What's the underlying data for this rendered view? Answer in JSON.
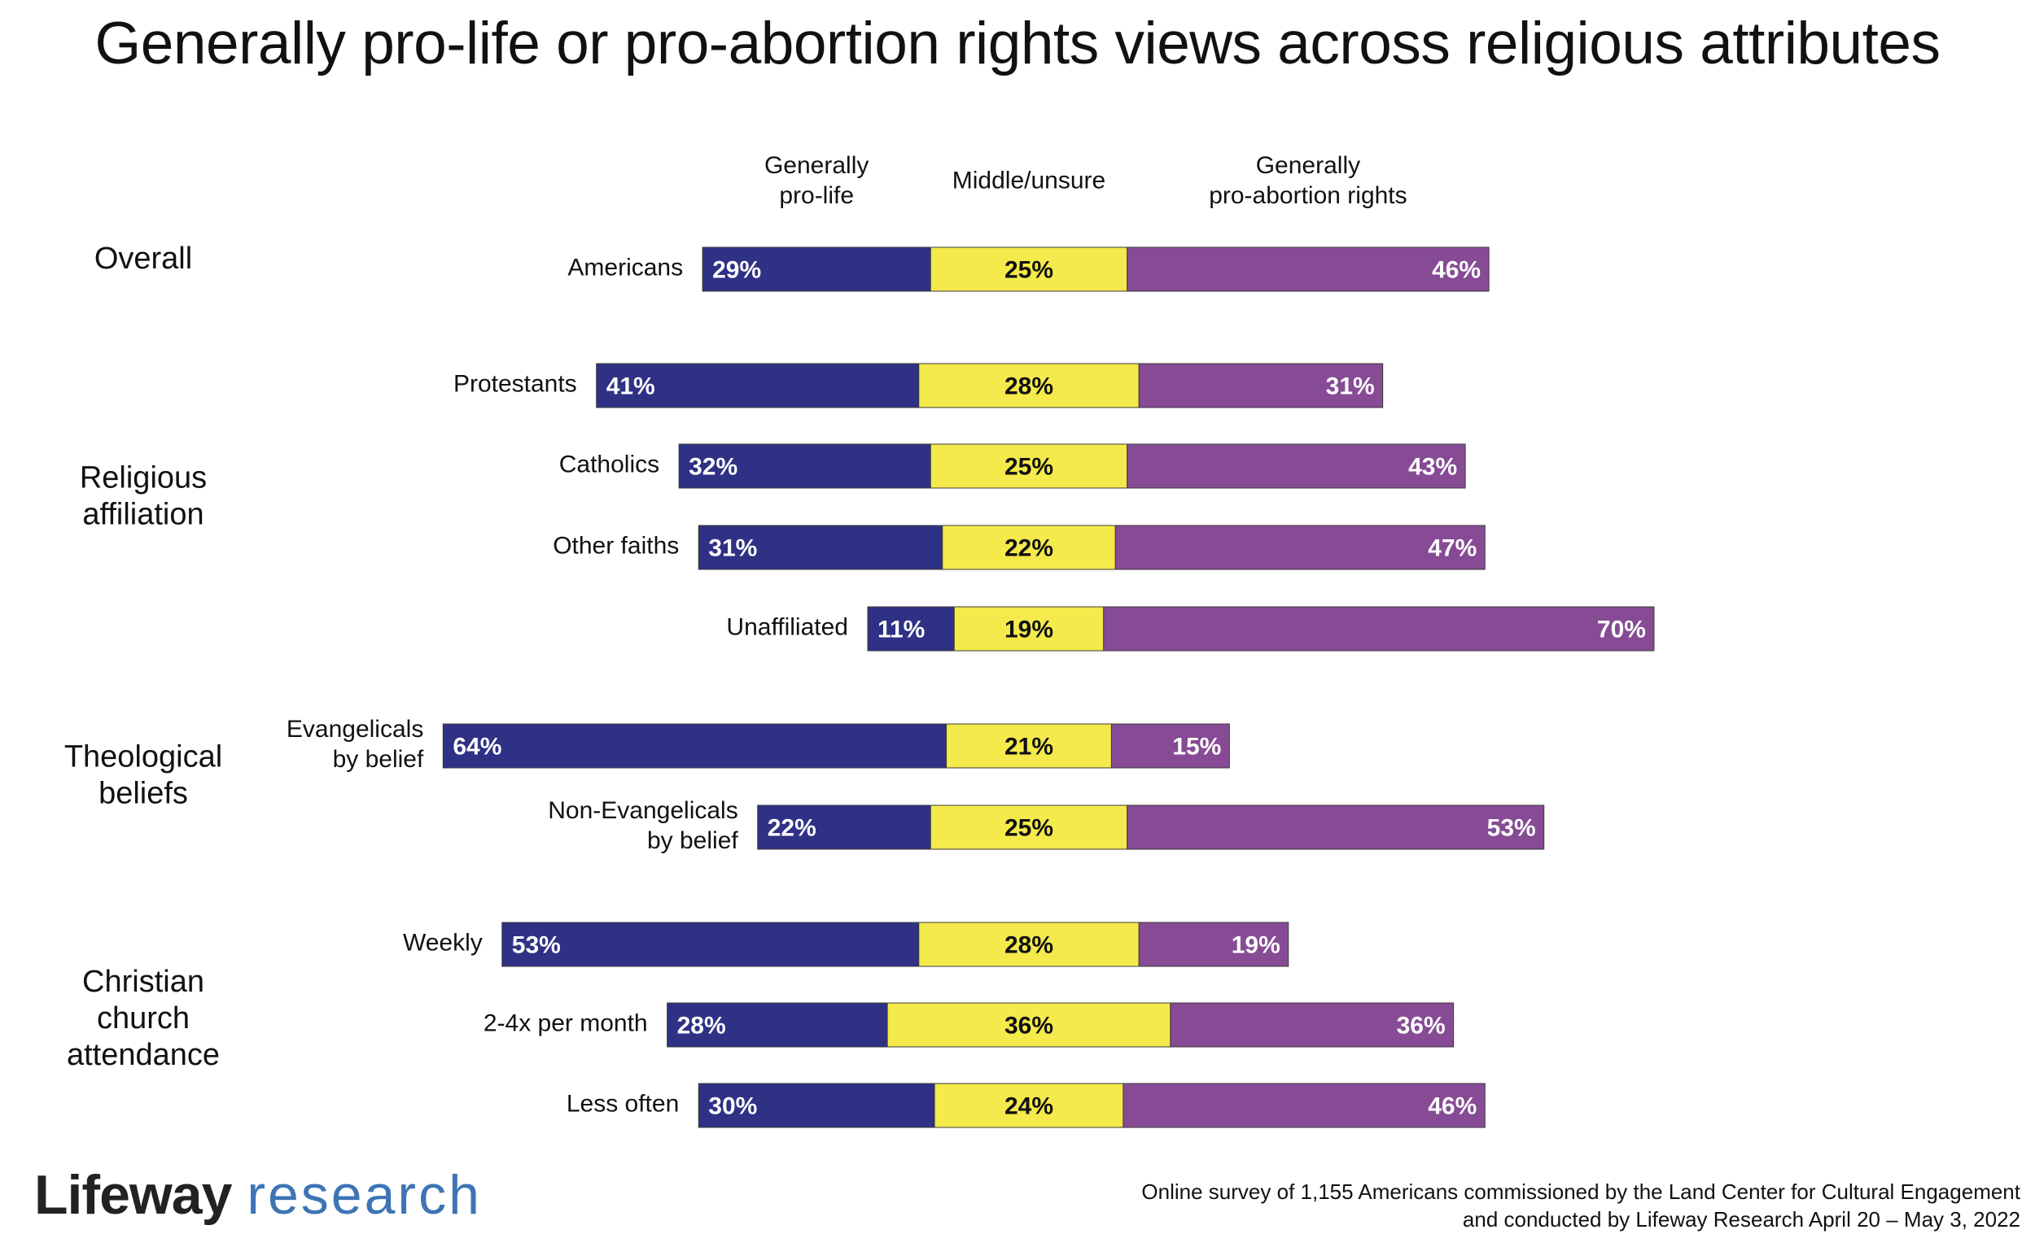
{
  "chart_data": {
    "type": "stacked-bar-horizontal",
    "title": "Generally pro-life or pro-abortion rights views across religious attributes",
    "series": [
      {
        "name": "Generally pro-life",
        "name_lines": [
          "Generally",
          "pro-life"
        ],
        "color": "#2e3184",
        "label_color": "#ffffff"
      },
      {
        "name": "Middle/unsure",
        "name_lines": [
          "Middle/unsure"
        ],
        "color": "#f4ea4b",
        "label_color": "#111111"
      },
      {
        "name": "Generally pro-abortion rights",
        "name_lines": [
          "Generally",
          "pro-abortion rights"
        ],
        "color": "#864b94",
        "label_color": "#ffffff"
      }
    ],
    "groups": [
      {
        "label_lines": [
          "Overall"
        ],
        "rows": [
          {
            "label_lines": [
              "Americans"
            ],
            "values": [
              29,
              25,
              46
            ]
          }
        ]
      },
      {
        "label_lines": [
          "Religious",
          "affiliation"
        ],
        "rows": [
          {
            "label_lines": [
              "Protestants"
            ],
            "values": [
              41,
              28,
              31
            ]
          },
          {
            "label_lines": [
              "Catholics"
            ],
            "values": [
              32,
              25,
              43
            ]
          },
          {
            "label_lines": [
              "Other faiths"
            ],
            "values": [
              31,
              22,
              47
            ]
          },
          {
            "label_lines": [
              "Unaffiliated"
            ],
            "values": [
              11,
              19,
              70
            ]
          }
        ]
      },
      {
        "label_lines": [
          "Theological",
          "beliefs"
        ],
        "rows": [
          {
            "label_lines": [
              "Evangelicals",
              "by belief"
            ],
            "values": [
              64,
              21,
              15
            ]
          },
          {
            "label_lines": [
              "Non-Evangelicals",
              "by belief"
            ],
            "values": [
              22,
              25,
              53
            ]
          }
        ]
      },
      {
        "label_lines": [
          "Christian",
          "church",
          "attendance"
        ],
        "rows": [
          {
            "label_lines": [
              "Weekly"
            ],
            "values": [
              53,
              28,
              19
            ]
          },
          {
            "label_lines": [
              "2-4x per month"
            ],
            "values": [
              28,
              36,
              36
            ]
          },
          {
            "label_lines": [
              "Less often"
            ],
            "values": [
              30,
              24,
              46
            ]
          }
        ]
      }
    ],
    "value_suffix": "%",
    "alignment": "centered on Middle/unsure segment"
  },
  "logo": {
    "brand": "Lifeway",
    "sub": "research"
  },
  "footnote": {
    "line1": "Online survey of 1,155 Americans commissioned by the Land Center for Cultural Engagement",
    "line2": "and conducted by Lifeway Research April 20 – May 3, 2022"
  }
}
